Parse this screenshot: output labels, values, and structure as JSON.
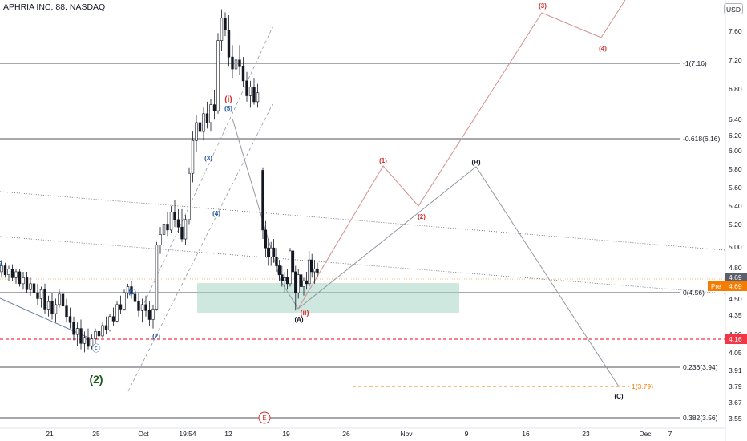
{
  "title": "APHRIA INC, 88, NASDAQ",
  "currency": "USD",
  "price_labels": {
    "last": "4.69",
    "pre_tag": "Pre",
    "pre_value": "4.69",
    "support": "4.16"
  },
  "colors": {
    "background": "#ffffff",
    "candle": "#131722",
    "count_red": "#d32f2f",
    "count_blue": "#1e53a0",
    "count_green": "#1b5e20",
    "zone": "#9ed1bf",
    "pre_orange": "#f57c00",
    "support_red": "#f23645",
    "projection": "#d48f8f",
    "alt_projection": "#9598a1"
  },
  "chart_data": {
    "type": "candlestick",
    "ylim": [
      3.5,
      8.0
    ],
    "y_ticks": [
      "7.60",
      "7.20",
      "6.80",
      "6.40",
      "6.20",
      "6.00",
      "5.80",
      "5.60",
      "5.40",
      "5.20",
      "5.00",
      "4.80",
      "4.50",
      "4.35",
      "4.20",
      "4.05",
      "3.91",
      "3.79",
      "3.67",
      "3.55"
    ],
    "x_ticks": [
      "21",
      "25",
      "Oct",
      "19:54",
      "12",
      "19",
      "26",
      "Nov",
      "9",
      "16",
      "23",
      "Dec",
      "7"
    ],
    "fib_levels": [
      {
        "label": "-1(7.16)",
        "value": 7.16
      },
      {
        "label": "-0.618(6.16)",
        "value": 6.16
      },
      {
        "label": "0(4.56)",
        "value": 4.56
      },
      {
        "label": "0.236(3.94)",
        "value": 3.94
      },
      {
        "label": "0.382(3.56)",
        "value": 3.56
      }
    ],
    "target_level": {
      "label": "1(3.79)",
      "value": 3.79
    },
    "support_level": 4.16,
    "wave_labels_red": [
      "(1)",
      "(2)",
      "(3)",
      "(4)",
      "(i)",
      "(ii)"
    ],
    "wave_labels_blue": [
      "(1)",
      "(2)",
      "(3)",
      "(4)",
      "(5)",
      "B"
    ],
    "wave_labels_black": [
      "(A)",
      "(B)",
      "(C)"
    ],
    "wave_label_large": "(2)",
    "circled_labels": [
      "ⓒ",
      "Ⓔ"
    ],
    "candles": [
      [
        4.7,
        4.78,
        4.66,
        4.74
      ],
      [
        4.74,
        4.76,
        4.66,
        4.68
      ],
      [
        4.68,
        4.74,
        4.64,
        4.72
      ],
      [
        4.72,
        4.75,
        4.64,
        4.66
      ],
      [
        4.66,
        4.72,
        4.62,
        4.7
      ],
      [
        4.7,
        4.72,
        4.6,
        4.62
      ],
      [
        4.62,
        4.7,
        4.58,
        4.66
      ],
      [
        4.66,
        4.7,
        4.56,
        4.58
      ],
      [
        4.58,
        4.66,
        4.54,
        4.62
      ],
      [
        4.62,
        4.66,
        4.52,
        4.56
      ],
      [
        4.56,
        4.62,
        4.48,
        4.52
      ],
      [
        4.52,
        4.6,
        4.46,
        4.58
      ],
      [
        4.58,
        4.62,
        4.42,
        4.45
      ],
      [
        4.45,
        4.54,
        4.4,
        4.5
      ],
      [
        4.5,
        4.56,
        4.38,
        4.42
      ],
      [
        4.42,
        4.52,
        4.36,
        4.48
      ],
      [
        4.48,
        4.58,
        4.46,
        4.55
      ],
      [
        4.55,
        4.6,
        4.44,
        4.47
      ],
      [
        4.47,
        4.52,
        4.36,
        4.4
      ],
      [
        4.4,
        4.46,
        4.32,
        4.36
      ],
      [
        4.36,
        4.4,
        4.24,
        4.28
      ],
      [
        4.28,
        4.36,
        4.2,
        4.32
      ],
      [
        4.32,
        4.38,
        4.18,
        4.22
      ],
      [
        4.22,
        4.3,
        4.16,
        4.26
      ],
      [
        4.26,
        4.32,
        4.18,
        4.2
      ],
      [
        4.2,
        4.28,
        4.18,
        4.25
      ],
      [
        4.25,
        4.32,
        4.22,
        4.3
      ],
      [
        4.3,
        4.34,
        4.24,
        4.27
      ],
      [
        4.27,
        4.36,
        4.26,
        4.34
      ],
      [
        4.34,
        4.4,
        4.28,
        4.31
      ],
      [
        4.31,
        4.42,
        4.3,
        4.4
      ],
      [
        4.4,
        4.46,
        4.34,
        4.37
      ],
      [
        4.37,
        4.5,
        4.36,
        4.48
      ],
      [
        4.48,
        4.54,
        4.42,
        4.45
      ],
      [
        4.45,
        4.58,
        4.44,
        4.56
      ],
      [
        4.56,
        4.62,
        4.52,
        4.6
      ],
      [
        4.6,
        4.64,
        4.52,
        4.55
      ],
      [
        4.55,
        4.6,
        4.46,
        4.5
      ],
      [
        4.5,
        4.56,
        4.4,
        4.44
      ],
      [
        4.44,
        4.52,
        4.36,
        4.48
      ],
      [
        4.48,
        4.54,
        4.4,
        4.44
      ],
      [
        4.44,
        4.5,
        4.34,
        4.38
      ],
      [
        4.38,
        4.48,
        4.32,
        4.45
      ],
      [
        4.45,
        4.9,
        4.44,
        4.88
      ],
      [
        4.88,
        5.0,
        4.82,
        4.95
      ],
      [
        4.95,
        5.08,
        4.9,
        5.02
      ],
      [
        5.02,
        5.1,
        4.94,
        4.98
      ],
      [
        4.98,
        5.14,
        4.96,
        5.1
      ],
      [
        5.1,
        5.18,
        5.0,
        5.05
      ],
      [
        5.05,
        5.12,
        4.96,
        5.0
      ],
      [
        5.0,
        5.12,
        4.9,
        4.92
      ],
      [
        4.92,
        5.08,
        4.88,
        5.05
      ],
      [
        5.05,
        5.4,
        5.02,
        5.36
      ],
      [
        5.36,
        5.64,
        5.3,
        5.58
      ],
      [
        5.58,
        5.75,
        5.5,
        5.7
      ],
      [
        5.7,
        5.78,
        5.6,
        5.64
      ],
      [
        5.64,
        5.8,
        5.58,
        5.76
      ],
      [
        5.76,
        5.84,
        5.66,
        5.7
      ],
      [
        5.7,
        5.86,
        5.64,
        5.82
      ],
      [
        5.82,
        5.92,
        5.72,
        5.78
      ],
      [
        5.78,
        6.3,
        5.76,
        6.25
      ],
      [
        6.25,
        6.46,
        6.18,
        6.4
      ],
      [
        6.4,
        6.44,
        6.28,
        6.32
      ],
      [
        6.32,
        6.42,
        6.08,
        6.14
      ],
      [
        6.14,
        6.22,
        6.0,
        6.06
      ],
      [
        6.06,
        6.16,
        5.96,
        6.12
      ],
      [
        6.12,
        6.22,
        6.02,
        6.08
      ],
      [
        6.08,
        6.14,
        5.94,
        5.98
      ],
      [
        5.98,
        6.04,
        5.84,
        5.88
      ],
      [
        5.88,
        5.98,
        5.8,
        5.94
      ],
      [
        5.94,
        6.0,
        5.82,
        5.84
      ],
      [
        5.84,
        5.96,
        5.8,
        5.9
      ],
      [
        5.38,
        5.4,
        4.92,
        4.98
      ],
      [
        4.98,
        5.04,
        4.8,
        4.86
      ],
      [
        4.86,
        4.92,
        4.74,
        4.8
      ],
      [
        4.8,
        4.9,
        4.74,
        4.86
      ],
      [
        4.86,
        4.92,
        4.76,
        4.8
      ],
      [
        4.8,
        4.86,
        4.7,
        4.74
      ],
      [
        4.74,
        4.78,
        4.64,
        4.68
      ],
      [
        4.68,
        4.74,
        4.6,
        4.64
      ],
      [
        4.64,
        4.7,
        4.56,
        4.66
      ],
      [
        4.66,
        4.72,
        4.58,
        4.62
      ],
      [
        4.62,
        4.86,
        4.6,
        4.84
      ],
      [
        4.84,
        4.86,
        4.66,
        4.7
      ],
      [
        4.7,
        4.74,
        4.44,
        4.56
      ],
      [
        4.56,
        4.72,
        4.52,
        4.68
      ],
      [
        4.68,
        4.74,
        4.56,
        4.6
      ],
      [
        4.6,
        4.66,
        4.54,
        4.64
      ],
      [
        4.64,
        4.7,
        4.58,
        4.62
      ],
      [
        4.62,
        4.84,
        4.6,
        4.78
      ],
      [
        4.78,
        4.82,
        4.66,
        4.7
      ],
      [
        4.7,
        4.78,
        4.62,
        4.72
      ],
      [
        4.72,
        4.76,
        4.66,
        4.69
      ]
    ]
  }
}
